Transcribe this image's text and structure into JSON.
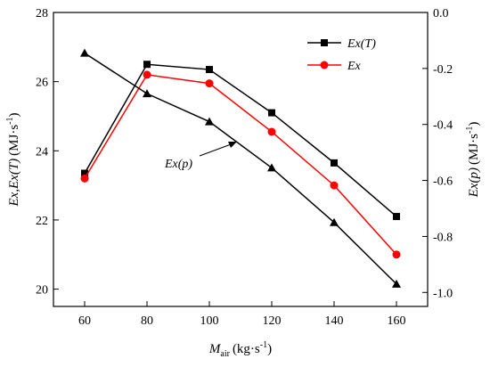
{
  "chart_data": {
    "type": "line",
    "x": [
      60,
      80,
      100,
      120,
      140,
      160
    ],
    "xlim": [
      50,
      170
    ],
    "xticks": [
      "60",
      "80",
      "100",
      "120",
      "140",
      "160"
    ],
    "xlabel_main": "M",
    "xlabel_sub": "air",
    "xlabel_unit": "(kg·s",
    "xlabel_exp": "-1",
    "xlabel_close": ")",
    "left_axis": {
      "label_main": "Ex,Ex(T)",
      "label_unit": "(MJ·s",
      "label_exp": "-1",
      "label_close": ")",
      "ylim": [
        19.5,
        28
      ],
      "ticks": [
        "20",
        "22",
        "24",
        "26",
        "28"
      ]
    },
    "right_axis": {
      "label_main": "Ex(p)",
      "label_unit": "(MJ·s",
      "label_exp": "-1",
      "label_close": ")",
      "ylim": [
        -1.05,
        0.0
      ],
      "ticks": [
        "-1.0",
        "-0.8",
        "-0.6",
        "-0.4",
        "-0.2",
        "0.0"
      ]
    },
    "series": [
      {
        "name_main": "Ex(T)",
        "axis": "left",
        "color": "#000000",
        "marker": "square",
        "values": [
          23.35,
          26.5,
          26.35,
          25.1,
          23.65,
          22.1
        ]
      },
      {
        "name_main": "Ex",
        "axis": "left",
        "color": "#ff0000",
        "marker": "circle",
        "values": [
          23.2,
          26.2,
          25.95,
          24.55,
          23.0,
          21.0
        ]
      },
      {
        "axis": "right",
        "color": "#000000",
        "marker": "triangle",
        "values": [
          -0.145,
          -0.29,
          -0.39,
          -0.555,
          -0.75,
          -0.97
        ]
      }
    ],
    "annotation": {
      "text": "Ex(p)",
      "points_to_x": 120
    },
    "legend_position": "top-right"
  }
}
